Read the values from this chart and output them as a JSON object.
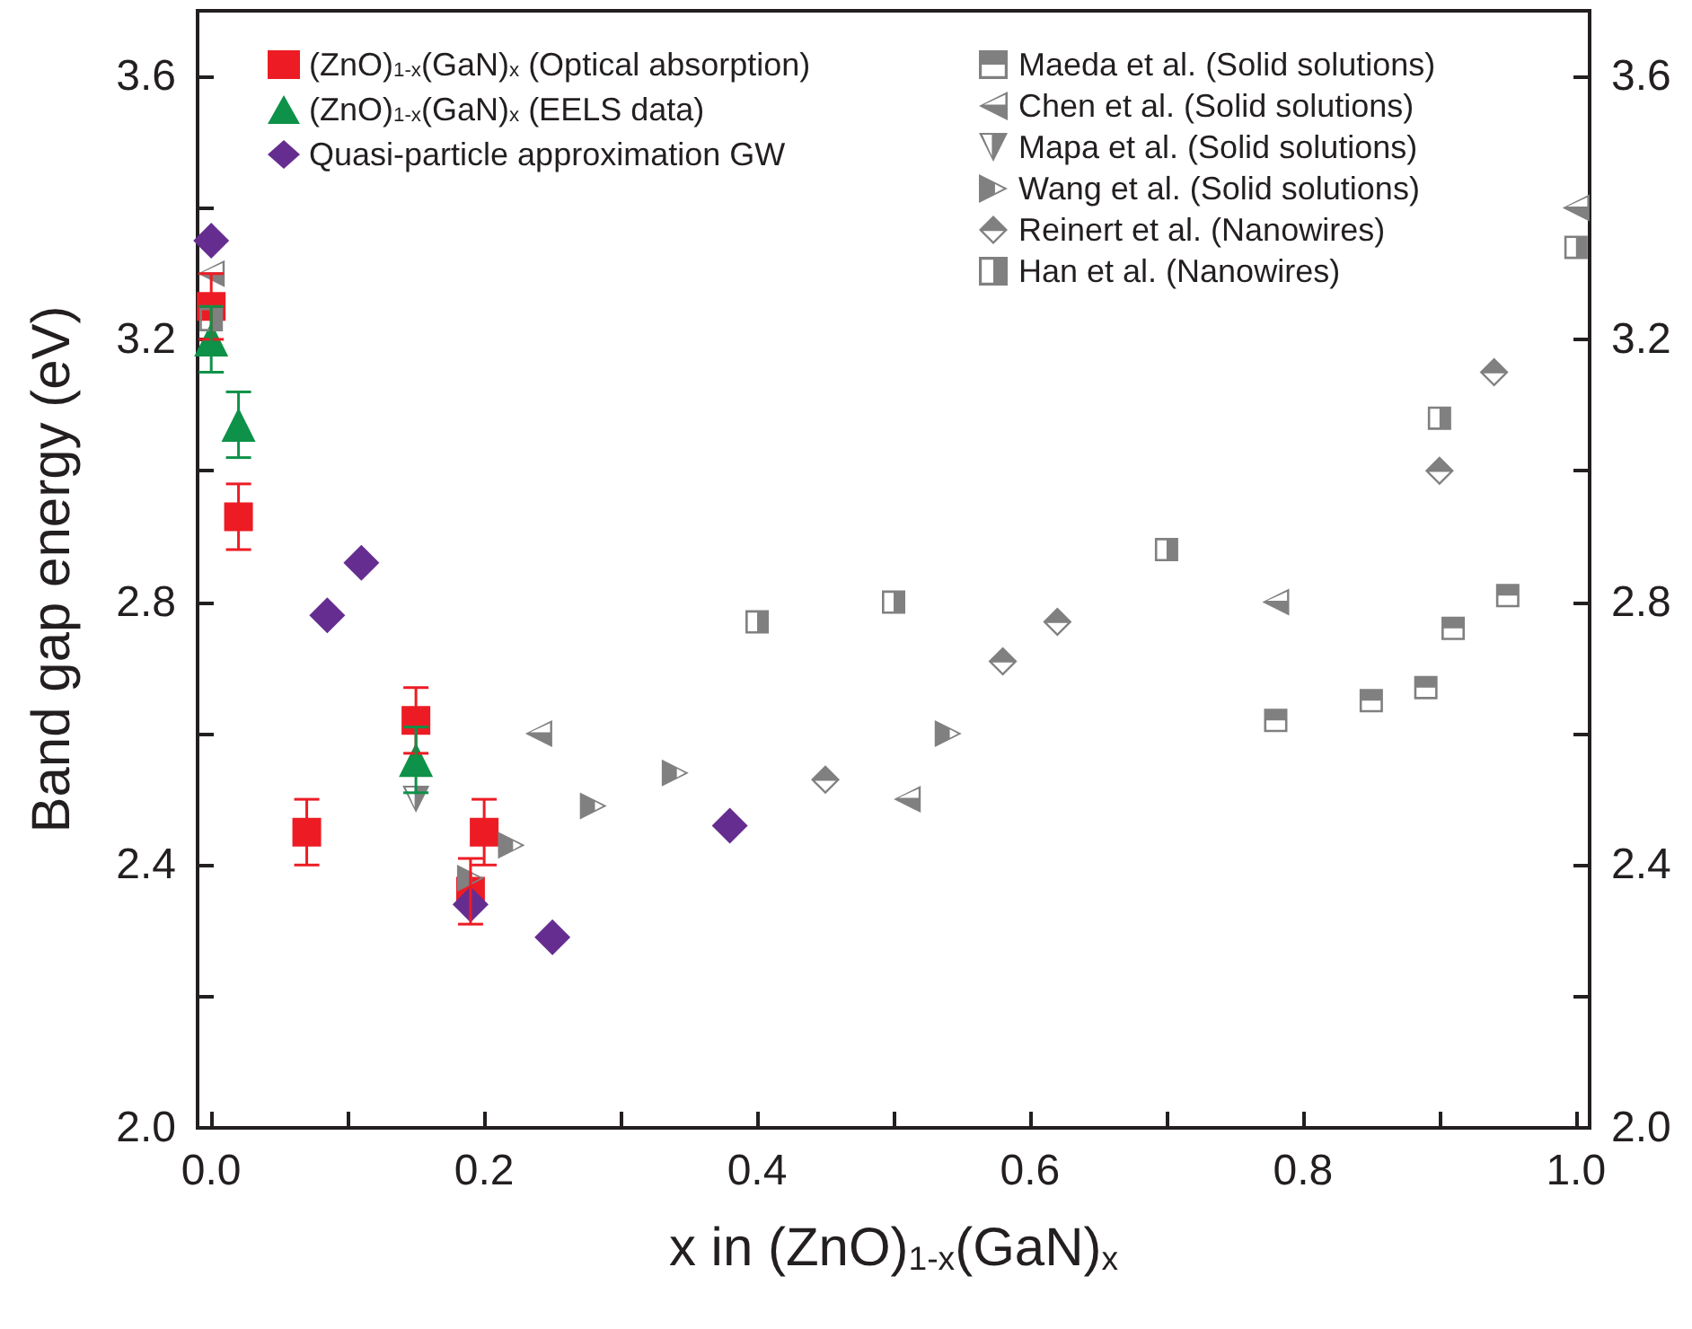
{
  "chart_data": {
    "type": "scatter",
    "xlabel": "x in (ZnO)$_{1-x}$(GaN)$_{x}$",
    "ylabel": "Band gap energy (eV)",
    "xlim": [
      -0.01,
      1.01
    ],
    "xticks": [
      {
        "value": 0,
        "label": "0.0"
      },
      {
        "value": 0.1,
        "label": null
      },
      0.2,
      {
        "value": 0.3,
        "label": null
      },
      0.4,
      {
        "value": 0.5,
        "label": null
      },
      0.6,
      {
        "value": 0.7,
        "label": null
      },
      0.8,
      {
        "value": 0.9,
        "label": null
      },
      {
        "value": 1,
        "label": "1.0"
      }
    ],
    "ylim": [
      2.0,
      3.7
    ],
    "yticks": [
      {
        "value": 2,
        "label": "2.0"
      },
      {
        "value": 2.2,
        "label": null
      },
      2.4,
      {
        "value": 2.6,
        "label": null
      },
      2.8,
      {
        "value": 3,
        "label": null
      },
      3.2,
      {
        "value": 3.4,
        "label": null
      },
      3.6
    ],
    "y2lim": [
      2.0,
      3.7
    ],
    "y2ticks": [
      {
        "value": 2,
        "label": "2.0"
      },
      {
        "value": 2.2,
        "label": null
      },
      2.4,
      {
        "value": 2.6,
        "label": null
      },
      2.8,
      {
        "value": 3,
        "label": null
      },
      3.2,
      {
        "value": 3.4,
        "label": null
      },
      3.6
    ],
    "grid": false,
    "legend": "top left",
    "series": [
      {
        "name": "(ZnO)$_{1-x}$(GaN)$_{x}$ (Optical absorption)",
        "color": "#ed1c24",
        "marker": "square",
        "x": [
          0.0,
          0.02,
          0.07,
          0.15,
          0.19,
          0.2
        ],
        "values": [
          3.25,
          2.93,
          2.45,
          2.62,
          2.36,
          2.45
        ],
        "errors": [
          0.05,
          0.05,
          0.05,
          0.05,
          0.05,
          0.05
        ]
      },
      {
        "name": "(ZnO)$_{1-x}$(GaN)$_{x}$ (EELS data)",
        "color": "#0e9148",
        "marker": "triangle",
        "x": [
          0.0,
          0.02,
          0.15
        ],
        "values": [
          3.2,
          3.07,
          2.56
        ],
        "errors": [
          0.05,
          0.05,
          0.05
        ]
      },
      {
        "name": "Quasi-particle approximation GW",
        "color": "#662d91",
        "marker": "diamond",
        "x": [
          0.0,
          0.085,
          0.11,
          0.19,
          0.25,
          0.38
        ],
        "values": [
          3.35,
          2.78,
          2.86,
          2.34,
          2.29,
          2.46
        ]
      },
      {
        "name": "Maeda et al. (Solid solutions)",
        "color": "#808080",
        "marker": "square",
        "x": [
          0.78,
          0.85,
          0.89,
          0.91,
          0.95
        ],
        "values": [
          2.62,
          2.65,
          2.67,
          2.76,
          2.81
        ]
      },
      {
        "name": "Chen et al. (Solid solutions)",
        "color": "#808080",
        "marker": "triangle",
        "x": [
          0.0,
          0.24,
          0.51,
          0.78,
          1.0
        ],
        "values": [
          3.3,
          2.6,
          2.5,
          2.8,
          3.4
        ]
      },
      {
        "name": "Mapa et al. (Solid solutions)",
        "color": "#808080",
        "marker": "triangle",
        "x": [
          0.15
        ],
        "values": [
          2.5
        ]
      },
      {
        "name": "Wang et al. (Solid solutions)",
        "color": "#808080",
        "marker": "triangle",
        "x": [
          0.19,
          0.22,
          0.28,
          0.34,
          0.54
        ],
        "values": [
          2.38,
          2.43,
          2.49,
          2.54,
          2.6
        ]
      },
      {
        "name": "Reinert et al. (Nanowires)",
        "color": "#808080",
        "marker": "diamond",
        "x": [
          0.45,
          0.58,
          0.62,
          0.9,
          0.94
        ],
        "values": [
          2.53,
          2.71,
          2.77,
          3.0,
          3.15
        ]
      },
      {
        "name": "Han et al. (Nanowires)",
        "color": "#808080",
        "marker": "square",
        "x": [
          0.0,
          0.4,
          0.5,
          0.7,
          0.9,
          1.0
        ],
        "values": [
          3.23,
          2.77,
          2.8,
          2.88,
          3.08,
          3.34
        ]
      }
    ]
  }
}
